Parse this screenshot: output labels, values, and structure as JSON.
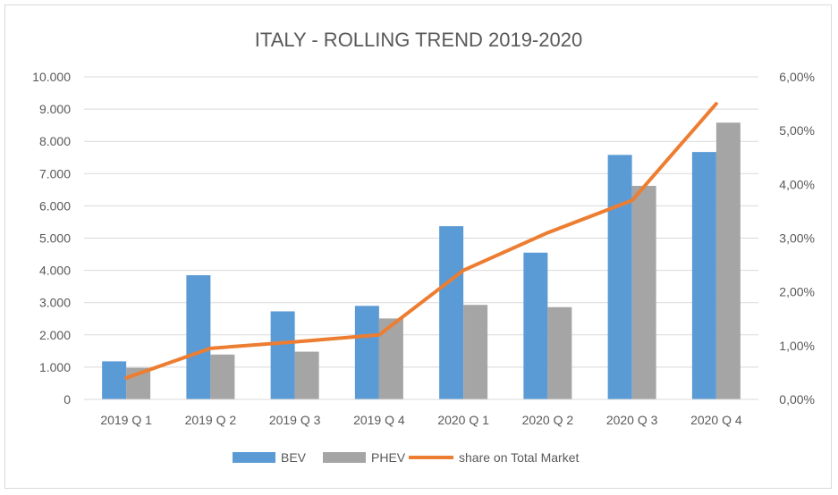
{
  "chart_data": {
    "type": "bar",
    "title": "ITALY - ROLLING TREND 2019-2020",
    "categories": [
      "2019 Q 1",
      "2019 Q 2",
      "2019 Q 3",
      "2019 Q 4",
      "2020 Q 1",
      "2020 Q 2",
      "2020 Q 3",
      "2020 Q 4"
    ],
    "series": [
      {
        "name": "BEV",
        "kind": "bar",
        "axis": "left",
        "color": "#5b9bd5",
        "values": [
          1180,
          3850,
          2730,
          2900,
          5370,
          4550,
          7580,
          7670
        ]
      },
      {
        "name": "PHEV",
        "kind": "bar",
        "axis": "left",
        "color": "#a5a5a5",
        "values": [
          980,
          1390,
          1480,
          2510,
          2930,
          2860,
          6620,
          8580
        ]
      },
      {
        "name": "share on Total Market",
        "kind": "line",
        "axis": "right",
        "color": "#ed7d31",
        "values": [
          0.4,
          0.95,
          1.07,
          1.2,
          2.4,
          3.1,
          3.7,
          5.5
        ]
      }
    ],
    "y_left": {
      "ylim": [
        0,
        10000
      ],
      "ticks": [
        "0",
        "1.000",
        "2.000",
        "3.000",
        "4.000",
        "5.000",
        "6.000",
        "7.000",
        "8.000",
        "9.000",
        "10.000"
      ]
    },
    "y_right": {
      "ylim": [
        0,
        6
      ],
      "unit": "%",
      "ticks": [
        "0,00%",
        "1,00%",
        "2,00%",
        "3,00%",
        "4,00%",
        "5,00%",
        "6,00%"
      ]
    },
    "grid": true,
    "legend_position": "bottom"
  }
}
